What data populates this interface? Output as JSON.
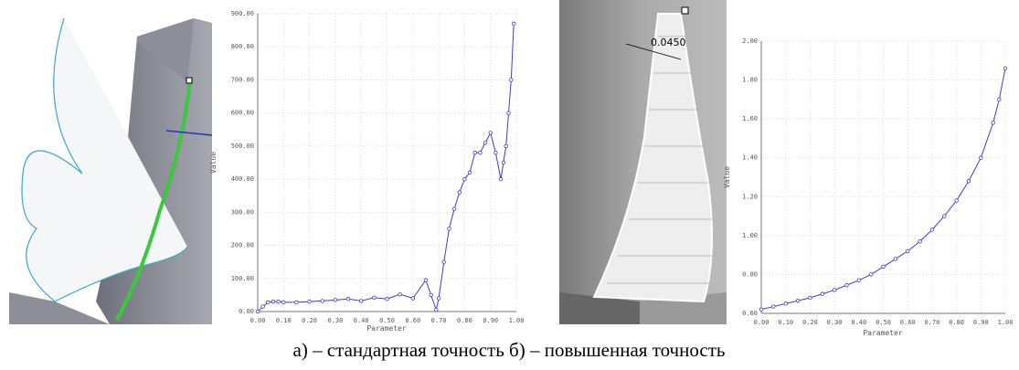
{
  "chart_data": [
    {
      "type": "line",
      "y_label": "Value",
      "x_label": "Parameter",
      "series": [
        {
          "color": "#3d3dd0",
          "x": [
            0,
            0.02,
            0.04,
            0.06,
            0.08,
            0.1,
            0.15,
            0.2,
            0.25,
            0.3,
            0.35,
            0.4,
            0.45,
            0.5,
            0.55,
            0.6,
            0.65,
            0.67,
            0.69,
            0.7,
            0.72,
            0.74,
            0.76,
            0.78,
            0.8,
            0.82,
            0.84,
            0.86,
            0.88,
            0.9,
            0.92,
            0.94,
            0.95,
            0.96,
            0.97,
            0.98,
            0.99
          ],
          "values": [
            0,
            15,
            28,
            30,
            30,
            28,
            28,
            30,
            32,
            35,
            38,
            32,
            42,
            38,
            52,
            40,
            95,
            50,
            5,
            40,
            150,
            250,
            310,
            360,
            400,
            420,
            480,
            480,
            510,
            540,
            480,
            400,
            450,
            500,
            600,
            700,
            870
          ]
        }
      ],
      "xlim": [
        0,
        1
      ],
      "ylim": [
        0,
        900
      ],
      "grid": true,
      "xticks": [
        {
          "value": 0,
          "label": "0.00"
        },
        {
          "value": 0.1,
          "label": "0.10"
        },
        {
          "value": 0.2,
          "label": "0.20"
        },
        {
          "value": 0.3,
          "label": "0.30"
        },
        {
          "value": 0.4,
          "label": "0.40"
        },
        {
          "value": 0.5,
          "label": "0.50"
        },
        {
          "value": 0.6,
          "label": "0.60"
        },
        {
          "value": 0.7,
          "label": "0.70"
        },
        {
          "value": 0.8,
          "label": "0.80"
        },
        {
          "value": 0.9,
          "label": "0.90"
        },
        {
          "value": 1,
          "label": "1.00"
        }
      ],
      "yticks": [
        {
          "value": 0,
          "label": "0.00"
        },
        {
          "value": 100,
          "label": "100.00"
        },
        {
          "value": 200,
          "label": "200.00"
        },
        {
          "value": 300,
          "label": "300.00"
        },
        {
          "value": 400,
          "label": "400.00"
        },
        {
          "value": 500,
          "label": "500.00"
        },
        {
          "value": 600,
          "label": "600.00"
        },
        {
          "value": 700,
          "label": "700.00"
        },
        {
          "value": 800,
          "label": "800.00"
        },
        {
          "value": 900,
          "label": "900.00"
        }
      ]
    },
    {
      "type": "line",
      "y_label": "Value",
      "x_label": "Parameter",
      "series": [
        {
          "color": "#3d3dd0",
          "x": [
            0,
            0.05,
            0.1,
            0.15,
            0.2,
            0.25,
            0.3,
            0.35,
            0.4,
            0.45,
            0.5,
            0.55,
            0.6,
            0.65,
            0.7,
            0.75,
            0.8,
            0.85,
            0.9,
            0.95,
            0.975,
            1
          ],
          "values": [
            0.62,
            0.635,
            0.65,
            0.665,
            0.68,
            0.7,
            0.72,
            0.745,
            0.77,
            0.8,
            0.84,
            0.88,
            0.92,
            0.97,
            1.03,
            1.1,
            1.18,
            1.28,
            1.4,
            1.58,
            1.7,
            1.86
          ]
        }
      ],
      "xlim": [
        0,
        1
      ],
      "ylim": [
        0.6,
        2.0
      ],
      "grid": true,
      "xticks": [
        {
          "value": 0,
          "label": "0.00"
        },
        {
          "value": 0.1,
          "label": "0.10"
        },
        {
          "value": 0.2,
          "label": "0.20"
        },
        {
          "value": 0.3,
          "label": "0.30"
        },
        {
          "value": 0.4,
          "label": "0.40"
        },
        {
          "value": 0.5,
          "label": "0.50"
        },
        {
          "value": 0.6,
          "label": "0.60"
        },
        {
          "value": 0.7,
          "label": "0.70"
        },
        {
          "value": 0.8,
          "label": "0.80"
        },
        {
          "value": 0.9,
          "label": "0.90"
        },
        {
          "value": 1,
          "label": "1.00"
        }
      ],
      "yticks": [
        {
          "value": 0.6,
          "label": "0.60"
        },
        {
          "value": 0.8,
          "label": "0.80"
        },
        {
          "value": 1.0,
          "label": "1.00"
        },
        {
          "value": 1.2,
          "label": "1.20"
        },
        {
          "value": 1.4,
          "label": "1.40"
        },
        {
          "value": 1.6,
          "label": "1.60"
        },
        {
          "value": 1.8,
          "label": "1.80"
        },
        {
          "value": 2.0,
          "label": "2.00"
        }
      ]
    }
  ],
  "cad_label": "0.0450",
  "caption": "а) – стандартная точность б) – повышенная точность"
}
